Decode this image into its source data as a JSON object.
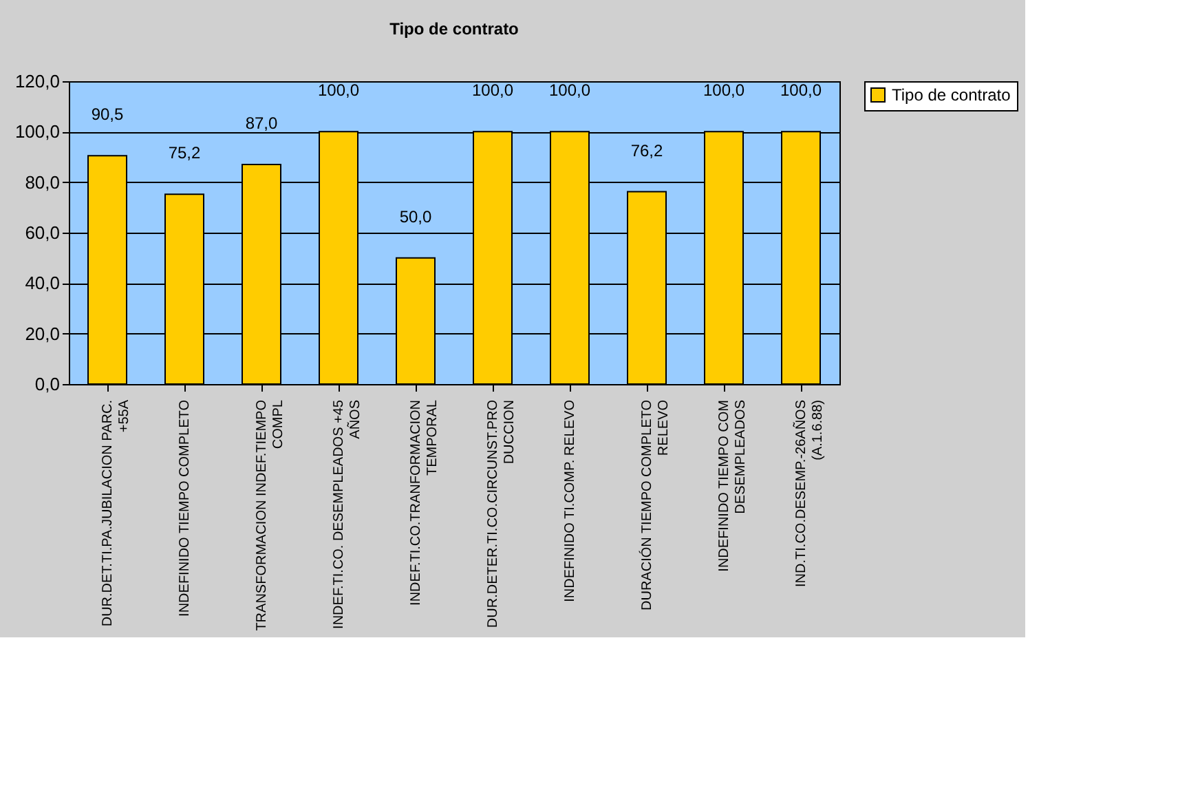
{
  "chart_data": {
    "type": "bar",
    "title": "Tipo de contrato",
    "categories": [
      "DUR.DET.TI.PA.JUBILACION PARC.\n+55A",
      "INDEFINIDO TIEMPO COMPLETO",
      "TRANSFORMACION INDEF.TIEMPO\nCOMPL",
      "INDEF.TI.CO. DESEMPLEADOS +45\nAÑOS",
      "INDEF.TI.CO.TRANFORMACION\nTEMPORAL",
      "DUR.DETER.TI.CO.CIRCUNST.PRO\nDUCCION",
      "INDEFINIDO TI.COMP. RELEVO",
      "DURACIÓN TIEMPO COMPLETO\nRELEVO",
      "INDEFINIDO TIEMPO COM\nDESEMPLEADOS",
      "IND.TI.CO.DESEMP.-26AÑOS\n(A.1.6.88)"
    ],
    "series": [
      {
        "name": "Tipo de contrato",
        "color": "#ffcc00",
        "values": [
          90.5,
          75.2,
          87.0,
          100.0,
          50.0,
          100.0,
          100.0,
          76.2,
          100.0,
          100.0
        ],
        "value_labels": [
          "90,5",
          "75,2",
          "87,0",
          "100,0",
          "50,0",
          "100,0",
          "100,0",
          "76,2",
          "100,0",
          "100,0"
        ]
      }
    ],
    "ylim": [
      0,
      120
    ],
    "yticks": [
      {
        "value": 0,
        "label": "0,0"
      },
      {
        "value": 20,
        "label": "20,0"
      },
      {
        "value": 40,
        "label": "40,0"
      },
      {
        "value": 60,
        "label": "60,0"
      },
      {
        "value": 80,
        "label": "80,0"
      },
      {
        "value": 100,
        "label": "100,0"
      },
      {
        "value": 120,
        "label": "120,0"
      }
    ],
    "grid": "y",
    "legend": "right"
  }
}
